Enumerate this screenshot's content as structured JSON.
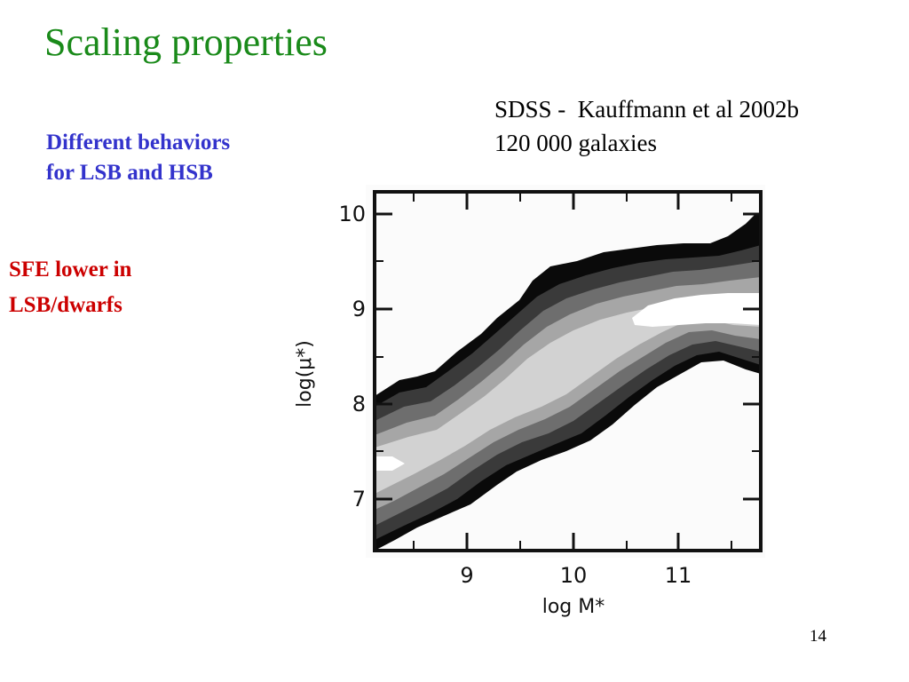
{
  "slide": {
    "title": "Scaling properties",
    "subtitle_lines": [
      "Different behaviors",
      "for LSB and HSB"
    ],
    "note_lines": [
      "SFE lower in",
      "LSB/dwarfs"
    ],
    "source_lines": [
      "SDSS -  Kauffmann et al 2002b",
      "120 000 galaxies"
    ],
    "page_number": "14"
  },
  "colors": {
    "title": "#1a8a1a",
    "subtitle": "#3333cc",
    "note": "#cc0000"
  },
  "chart_data": {
    "type": "contour",
    "xlabel": "log M*",
    "ylabel": "log(μ*)",
    "xlim": [
      8.1,
      11.9
    ],
    "ylim": [
      6.55,
      10.1
    ],
    "x_ticks": [
      "9",
      "10",
      "11"
    ],
    "y_ticks": [
      "7",
      "8",
      "9",
      "10"
    ],
    "contour_levels": 5,
    "description_bins": "grayscale density contours of SDSS galaxies"
  }
}
